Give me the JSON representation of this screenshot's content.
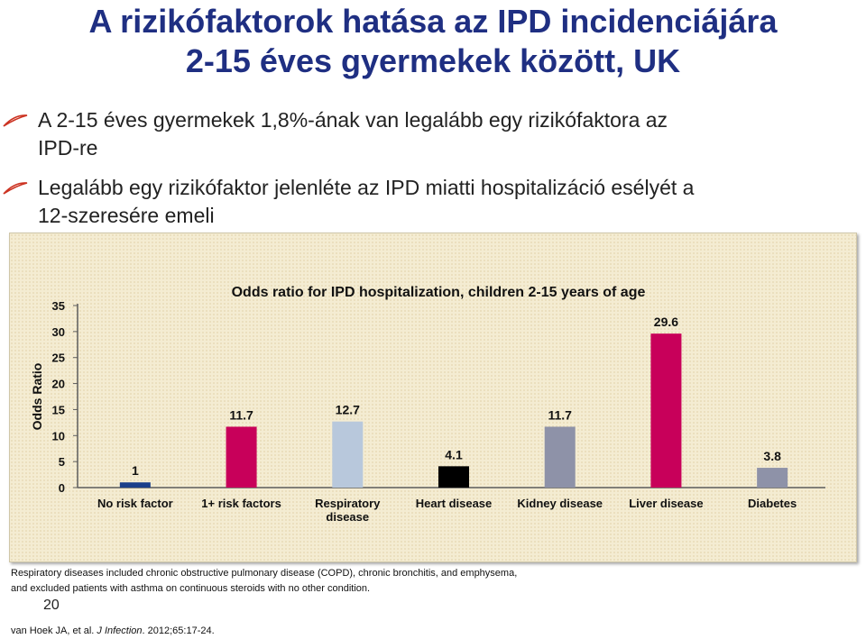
{
  "title": {
    "line1": "A rizikófaktorok hatása az IPD incidenciájára",
    "line2": "2-15 éves gyermekek között, UK"
  },
  "bullets": [
    {
      "line1": "A 2-15 éves gyermekek 1,8%-ának van legalább egy rizikófaktora az",
      "line2": "IPD-re"
    },
    {
      "line1": "Legalább egy rizikófaktor jelenléte az IPD miatti hospitalizáció esélyét a",
      "line2": "12-szeresére emeli"
    }
  ],
  "colors": {
    "title": "#1f2f82",
    "bullet_mark": "#cc3322",
    "panel_bg": "#f4ecd2",
    "axis": "#5c5c5c"
  },
  "chart_data": {
    "type": "bar",
    "title": "Odds ratio for IPD hospitalization, children 2-15 years of age",
    "xlabel": "",
    "ylabel": "Odds Ratio",
    "ylim": [
      0,
      35
    ],
    "yticks": [
      0,
      5,
      10,
      15,
      20,
      25,
      30,
      35
    ],
    "grid": false,
    "legend": "none",
    "categories": [
      [
        "No risk factor"
      ],
      [
        "1+ risk factors"
      ],
      [
        "Respiratory",
        "disease"
      ],
      [
        "Heart disease"
      ],
      [
        "Kidney disease"
      ],
      [
        "Liver disease"
      ],
      [
        "Diabetes"
      ]
    ],
    "values": [
      1,
      11.7,
      12.7,
      4.1,
      11.7,
      29.6,
      3.8
    ],
    "value_labels": [
      "1",
      "11.7",
      "12.7",
      "4.1",
      "11.7",
      "29.6",
      "3.8"
    ],
    "bar_colors": [
      "#1b3f8a",
      "#c8005a",
      "#b8c8dc",
      "#000000",
      "#8e92a8",
      "#c8005a",
      "#8e92a8"
    ]
  },
  "note": {
    "line1": "Respiratory diseases included chronic obstructive pulmonary disease (COPD), chronic bronchitis, and emphysema,",
    "line2": "and excluded patients with asthma on continuous steroids with no other condition."
  },
  "page_number": "20",
  "citation": {
    "authors": "van Hoek JA, et al. ",
    "journal": "J Infection",
    "details": ". 2012;65:17-24."
  }
}
